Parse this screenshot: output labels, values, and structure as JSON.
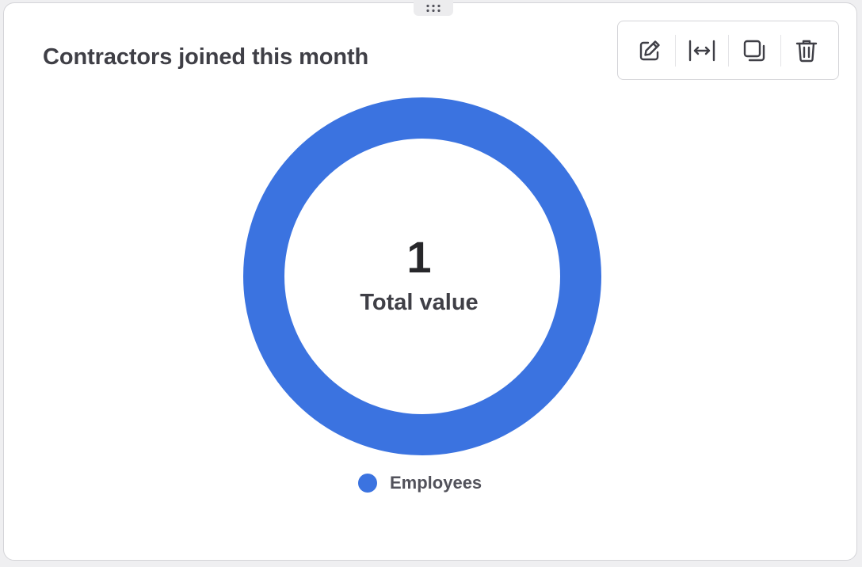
{
  "widget": {
    "title": "Contractors joined this month",
    "toolbar": {
      "edit_icon": "pencil-square-icon",
      "resize_icon": "expand-horizontal-icon",
      "duplicate_icon": "copy-icon",
      "delete_icon": "trash-icon"
    },
    "center_value": "1",
    "center_label": "Total value"
  },
  "colors": {
    "series_blue": "#3b73e0"
  },
  "chart_data": {
    "type": "pie",
    "variant": "donut",
    "categories": [
      "Employees"
    ],
    "values": [
      1
    ],
    "colors": [
      "#3b73e0"
    ],
    "legend": [
      "Employees"
    ],
    "legend_position": "bottom"
  }
}
